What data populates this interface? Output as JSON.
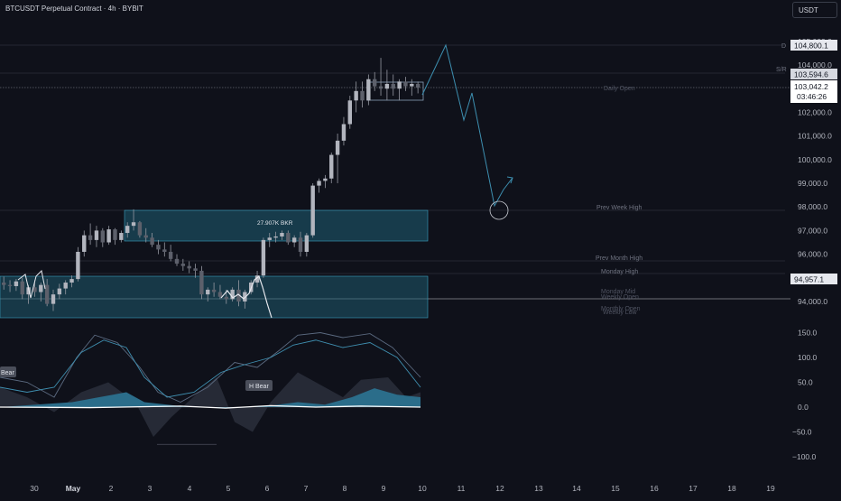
{
  "header": {
    "symbol_title": "BTCUSDT Perpetual Contract · 4h · BYBIT"
  },
  "currency_button": "USDT",
  "price_tags": {
    "p1": "104,800.1",
    "p2": "103,594.6",
    "last_price": "103,042.2",
    "countdown": "03:46:26",
    "p3": "94,957.1"
  },
  "level_labels": {
    "d": "D",
    "sr": "S/R",
    "daily_open": "Daily Open",
    "prev_week_high": "Prev Week High",
    "prev_month_high": "Prev Month High",
    "monday_high": "Monday High",
    "monday_mid": "Monday Mid",
    "weekly_open": "Weekly Open",
    "weekly_low": "Weekly Low",
    "monthly_open": "Monthly Open"
  },
  "zone_label": "27.907K BKR",
  "osc_labels": {
    "h_bear_1": "Bear",
    "h_bear_2": "H Bear"
  },
  "colors": {
    "background": "#0f111a",
    "zone_fill": "#1f5f74",
    "candle": "#9598a1",
    "osc_fill": "#2b6d8a",
    "projection": "#3d8fb0"
  },
  "chart_data": {
    "type": "candlestick",
    "price_axis": {
      "ticks": [
        "105,000.0",
        "104,000.0",
        "103,000.0",
        "102,000.0",
        "101,000.0",
        "100,000.0",
        "99,000.0",
        "98,000.0",
        "97,000.0",
        "96,000.0",
        "95,000.0",
        "94,000.0"
      ],
      "range": [
        93300,
        105200
      ]
    },
    "osc_axis": {
      "ticks": [
        "150.0",
        "100.0",
        "50.0",
        "0.0",
        "−50.0",
        "−100.0"
      ],
      "range": [
        -110,
        165
      ]
    },
    "time_axis": {
      "ticks": [
        "30",
        "May",
        "2",
        "3",
        "4",
        "5",
        "6",
        "7",
        "8",
        "9",
        "10",
        "11",
        "12",
        "13",
        "14",
        "15",
        "16",
        "17",
        "18",
        "19"
      ]
    },
    "candles": [
      [
        94800,
        95050,
        94500,
        94700
      ],
      [
        94700,
        94900,
        94400,
        94650
      ],
      [
        94650,
        94950,
        94450,
        94850
      ],
      [
        94850,
        95000,
        94100,
        94300
      ],
      [
        94300,
        94700,
        93900,
        94600
      ],
      [
        94600,
        94900,
        94200,
        94400
      ],
      [
        94400,
        94800,
        94000,
        94700
      ],
      [
        94700,
        94950,
        93800,
        93900
      ],
      [
        93900,
        94500,
        93600,
        94300
      ],
      [
        94300,
        94750,
        94100,
        94550
      ],
      [
        94550,
        94900,
        94300,
        94800
      ],
      [
        94800,
        95100,
        94600,
        94950
      ],
      [
        94950,
        96300,
        94850,
        96100
      ],
      [
        96100,
        97000,
        95900,
        96800
      ],
      [
        96800,
        97300,
        96400,
        96600
      ],
      [
        96600,
        97200,
        96300,
        97000
      ],
      [
        97000,
        97100,
        96300,
        96500
      ],
      [
        96500,
        97200,
        96400,
        97050
      ],
      [
        97050,
        97100,
        96400,
        96600
      ],
      [
        96600,
        97000,
        96500,
        96900
      ],
      [
        96900,
        97350,
        96700,
        97200
      ],
      [
        97200,
        97900,
        97000,
        97350
      ],
      [
        97350,
        97400,
        96700,
        96800
      ],
      [
        96800,
        97100,
        96500,
        96700
      ],
      [
        96700,
        96900,
        96300,
        96400
      ],
      [
        96400,
        96600,
        96000,
        96200
      ],
      [
        96200,
        96500,
        95900,
        96100
      ],
      [
        96100,
        96400,
        95700,
        95800
      ],
      [
        95800,
        96000,
        95500,
        95600
      ],
      [
        95600,
        95800,
        95300,
        95500
      ],
      [
        95500,
        95700,
        95200,
        95400
      ],
      [
        95400,
        95600,
        95000,
        95300
      ],
      [
        95300,
        95500,
        94100,
        94300
      ],
      [
        94300,
        94600,
        94000,
        94500
      ],
      [
        94500,
        94800,
        94200,
        94400
      ],
      [
        94400,
        94700,
        94100,
        94200
      ],
      [
        94200,
        94500,
        93900,
        94100
      ],
      [
        94100,
        94600,
        94000,
        94500
      ],
      [
        94500,
        94900,
        93800,
        94000
      ],
      [
        94000,
        94500,
        93700,
        94400
      ],
      [
        94400,
        94900,
        94300,
        94800
      ],
      [
        94800,
        95300,
        94600,
        95100
      ],
      [
        95100,
        96700,
        95000,
        96600
      ],
      [
        96600,
        96900,
        96300,
        96700
      ],
      [
        96700,
        96950,
        96500,
        96750
      ],
      [
        96750,
        97000,
        96600,
        96900
      ],
      [
        96900,
        97000,
        96400,
        96500
      ],
      [
        96500,
        96800,
        96300,
        96700
      ],
      [
        96700,
        96950,
        95900,
        96100
      ],
      [
        96100,
        96900,
        95900,
        96800
      ],
      [
        96800,
        99000,
        96700,
        98900
      ],
      [
        98900,
        99200,
        98600,
        99100
      ],
      [
        99100,
        99350,
        98800,
        99200
      ],
      [
        99200,
        100300,
        99000,
        100200
      ],
      [
        100200,
        101100,
        99000,
        100800
      ],
      [
        100800,
        101800,
        100600,
        101500
      ],
      [
        101500,
        102700,
        101300,
        102500
      ],
      [
        102500,
        103300,
        102000,
        102900
      ],
      [
        102900,
        103300,
        102200,
        102500
      ],
      [
        102500,
        103600,
        102300,
        103400
      ],
      [
        103400,
        103700,
        102900,
        103100
      ],
      [
        103100,
        104300,
        102700,
        103000
      ],
      [
        103000,
        103800,
        102500,
        103200
      ],
      [
        103200,
        103600,
        102700,
        103000
      ],
      [
        103000,
        103400,
        102500,
        103300
      ],
      [
        103300,
        103500,
        102900,
        103100
      ],
      [
        103100,
        103400,
        102700,
        103200
      ],
      [
        103200,
        103300,
        102800,
        103042
      ]
    ],
    "projection_path": [
      [
        103042,
        0
      ],
      [
        104900,
        0
      ],
      [
        102300,
        0
      ],
      [
        103100,
        0
      ],
      [
        97900,
        0
      ],
      [
        98700,
        0
      ]
    ],
    "oscillator": {
      "histogram_range": "approx -80 to 60",
      "upper_line_peak": 150,
      "zero_line": 0
    }
  }
}
